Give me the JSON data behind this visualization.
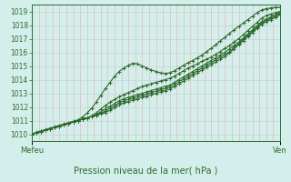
{
  "title": "Pression niveau de la mer( hPa )",
  "xlabel_left": "Mefeu",
  "xlabel_right": "Ven",
  "ylim": [
    1009.5,
    1019.5
  ],
  "xlim": [
    0,
    1
  ],
  "yticks": [
    1010,
    1011,
    1012,
    1013,
    1014,
    1015,
    1016,
    1017,
    1018,
    1019
  ],
  "background_color": "#d4eeec",
  "grid_color_horiz": "#b8d8d4",
  "grid_color_vert": "#e8b8b8",
  "line_color": "#2d6b2d",
  "marker": "+",
  "marker_size": 3,
  "line_width": 0.8,
  "n_vlines": 36,
  "series": [
    [
      1010.0,
      1010.15,
      1010.25,
      1010.35,
      1010.45,
      1010.55,
      1010.65,
      1010.75,
      1010.85,
      1010.95,
      1011.05,
      1011.25,
      1011.55,
      1011.9,
      1012.35,
      1012.85,
      1013.35,
      1013.8,
      1014.25,
      1014.6,
      1014.85,
      1015.05,
      1015.2,
      1015.15,
      1015.0,
      1014.85,
      1014.7,
      1014.6,
      1014.5,
      1014.45,
      1014.5,
      1014.65,
      1014.85,
      1015.05,
      1015.25,
      1015.4,
      1015.6,
      1015.8,
      1016.05,
      1016.3,
      1016.55,
      1016.85,
      1017.1,
      1017.4,
      1017.65,
      1017.9,
      1018.15,
      1018.4,
      1018.65,
      1018.9,
      1019.1,
      1019.2,
      1019.25,
      1019.3,
      1019.3
    ],
    [
      1010.0,
      1010.1,
      1010.2,
      1010.3,
      1010.4,
      1010.5,
      1010.6,
      1010.7,
      1010.8,
      1010.9,
      1011.0,
      1011.1,
      1011.2,
      1011.35,
      1011.55,
      1011.85,
      1012.1,
      1012.35,
      1012.55,
      1012.75,
      1012.9,
      1013.05,
      1013.2,
      1013.35,
      1013.5,
      1013.6,
      1013.7,
      1013.8,
      1013.9,
      1014.0,
      1014.1,
      1014.25,
      1014.45,
      1014.65,
      1014.85,
      1015.0,
      1015.15,
      1015.35,
      1015.5,
      1015.65,
      1015.85,
      1016.05,
      1016.3,
      1016.5,
      1016.75,
      1017.0,
      1017.3,
      1017.6,
      1017.9,
      1018.2,
      1018.5,
      1018.7,
      1018.8,
      1018.9,
      1019.0
    ],
    [
      1010.0,
      1010.1,
      1010.2,
      1010.3,
      1010.4,
      1010.5,
      1010.6,
      1010.7,
      1010.8,
      1010.9,
      1011.0,
      1011.1,
      1011.2,
      1011.3,
      1011.45,
      1011.65,
      1011.85,
      1012.05,
      1012.25,
      1012.45,
      1012.6,
      1012.7,
      1012.8,
      1012.9,
      1013.0,
      1013.1,
      1013.2,
      1013.3,
      1013.4,
      1013.5,
      1013.6,
      1013.8,
      1014.0,
      1014.2,
      1014.4,
      1014.6,
      1014.8,
      1015.0,
      1015.2,
      1015.4,
      1015.6,
      1015.8,
      1016.0,
      1016.25,
      1016.5,
      1016.75,
      1017.05,
      1017.35,
      1017.65,
      1017.95,
      1018.25,
      1018.45,
      1018.6,
      1018.75,
      1018.9
    ],
    [
      1010.0,
      1010.1,
      1010.2,
      1010.3,
      1010.4,
      1010.5,
      1010.6,
      1010.7,
      1010.8,
      1010.9,
      1011.0,
      1011.1,
      1011.2,
      1011.3,
      1011.4,
      1011.55,
      1011.7,
      1011.9,
      1012.1,
      1012.3,
      1012.45,
      1012.55,
      1012.65,
      1012.75,
      1012.85,
      1012.95,
      1013.05,
      1013.15,
      1013.25,
      1013.35,
      1013.45,
      1013.65,
      1013.85,
      1014.05,
      1014.25,
      1014.45,
      1014.65,
      1014.85,
      1015.05,
      1015.25,
      1015.45,
      1015.65,
      1015.85,
      1016.05,
      1016.35,
      1016.65,
      1016.95,
      1017.25,
      1017.55,
      1017.85,
      1018.15,
      1018.35,
      1018.5,
      1018.65,
      1018.85
    ],
    [
      1010.0,
      1010.1,
      1010.2,
      1010.3,
      1010.4,
      1010.5,
      1010.6,
      1010.7,
      1010.8,
      1010.9,
      1011.0,
      1011.1,
      1011.2,
      1011.3,
      1011.4,
      1011.5,
      1011.6,
      1011.75,
      1011.95,
      1012.15,
      1012.3,
      1012.4,
      1012.5,
      1012.6,
      1012.7,
      1012.8,
      1012.9,
      1013.0,
      1013.1,
      1013.2,
      1013.3,
      1013.5,
      1013.7,
      1013.9,
      1014.1,
      1014.3,
      1014.5,
      1014.7,
      1014.9,
      1015.1,
      1015.3,
      1015.5,
      1015.7,
      1015.95,
      1016.25,
      1016.55,
      1016.85,
      1017.15,
      1017.45,
      1017.75,
      1018.05,
      1018.25,
      1018.4,
      1018.55,
      1018.75
    ]
  ]
}
